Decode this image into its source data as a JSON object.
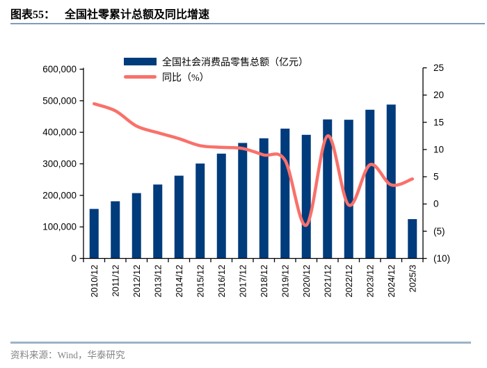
{
  "figure": {
    "label": "图表55：",
    "title": "全国社零累计总额及同比增速"
  },
  "footer": {
    "source": "资料来源：Wind，华泰研究"
  },
  "colors": {
    "bar": "#003b7c",
    "line": "#f9716a",
    "axis": "#000000",
    "rule_top": "#7e9cbc",
    "rule_bottom": "#9db3c7",
    "source_text": "#848484"
  },
  "chart_data": {
    "type": "bar",
    "subtype": "bar+line combo, dual axis",
    "title": "全国社零累计总额及同比增速",
    "categories": [
      "2010/12",
      "2011/12",
      "2012/12",
      "2013/12",
      "2014/12",
      "2015/12",
      "2016/12",
      "2017/12",
      "2018/12",
      "2019/12",
      "2020/12",
      "2021/12",
      "2022/12",
      "2023/12",
      "2024/12",
      "2025/3"
    ],
    "series": [
      {
        "name": "全国社会消费品零售总额（亿元）",
        "type": "bar",
        "axis": "left",
        "values": [
          156998,
          181226,
          207167,
          234380,
          262394,
          300931,
          332316,
          366262,
          380987,
          411649,
          391981,
          440823,
          439733,
          471495,
          487895,
          124671
        ]
      },
      {
        "name": "同比（%）",
        "type": "line",
        "axis": "right",
        "values": [
          18.4,
          17.1,
          14.3,
          13.1,
          12.0,
          10.7,
          10.4,
          10.2,
          9.0,
          8.0,
          -3.9,
          12.5,
          -0.2,
          7.2,
          3.5,
          4.6
        ]
      }
    ],
    "left_axis": {
      "min": 0,
      "max": 600000,
      "step": 100000,
      "tick_labels": [
        "0",
        "100,000",
        "200,000",
        "300,000",
        "400,000",
        "500,000",
        "600,000"
      ]
    },
    "right_axis": {
      "min": -10,
      "max": 25,
      "step": 5,
      "tick_labels": [
        "(10)",
        "(5)",
        "0",
        "5",
        "10",
        "15",
        "20",
        "25"
      ]
    },
    "legend_position": "top",
    "grid": false
  }
}
